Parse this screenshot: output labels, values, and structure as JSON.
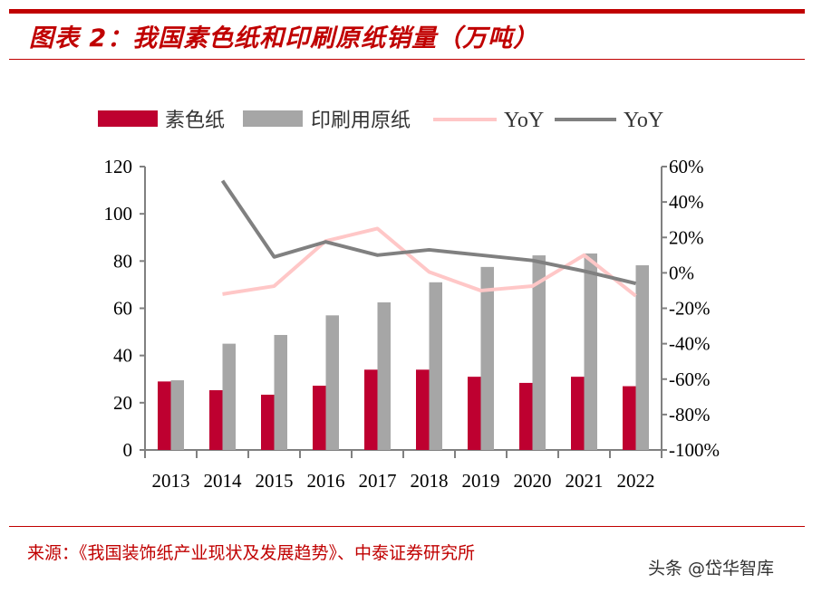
{
  "title": "图表 2：我国素色纸和印刷原纸销量（万吨）",
  "source": "来源：《我国装饰纸产业现状及发展趋势》、中泰证券研究所",
  "watermark": "头条 @岱华智库",
  "colors": {
    "plain_paper": "#be0030",
    "printing_base_paper": "#a6a6a6",
    "yoy_plain": "#ffc7c7",
    "yoy_printing": "#808080",
    "accent": "#c00000"
  },
  "chart_data": {
    "type": "bar+line",
    "title": "我国素色纸和印刷原纸销量（万吨）",
    "categories": [
      "2013",
      "2014",
      "2015",
      "2016",
      "2017",
      "2018",
      "2019",
      "2020",
      "2021",
      "2022"
    ],
    "series": [
      {
        "name": "素色纸",
        "type": "bar",
        "axis": "left",
        "values": [
          29,
          25.3,
          23.4,
          27.2,
          34,
          34,
          31,
          28.4,
          31,
          27
        ]
      },
      {
        "name": "印刷用原纸",
        "type": "bar",
        "axis": "left",
        "values": [
          29.5,
          45,
          48.7,
          57,
          62.5,
          71,
          77.5,
          82.4,
          83.2,
          78.2
        ]
      },
      {
        "name": "YoY",
        "type": "line",
        "axis": "right",
        "values": [
          null,
          -12,
          -7.5,
          18,
          25,
          0.5,
          -10,
          -7.5,
          10,
          -13
        ]
      },
      {
        "name": "YoY",
        "type": "line",
        "axis": "right",
        "values": [
          null,
          52,
          9,
          17.5,
          10,
          13,
          10,
          7,
          1,
          -6
        ]
      }
    ],
    "left_axis": {
      "ylim": [
        0,
        120
      ],
      "ticks": [
        "0",
        "20",
        "40",
        "60",
        "80",
        "100",
        "120"
      ]
    },
    "right_axis": {
      "ylim": [
        -100,
        60
      ],
      "ticks": [
        "-100%",
        "-80%",
        "-60%",
        "-40%",
        "-20%",
        "0%",
        "20%",
        "40%",
        "60%"
      ]
    },
    "legend": "top",
    "grid": false
  }
}
